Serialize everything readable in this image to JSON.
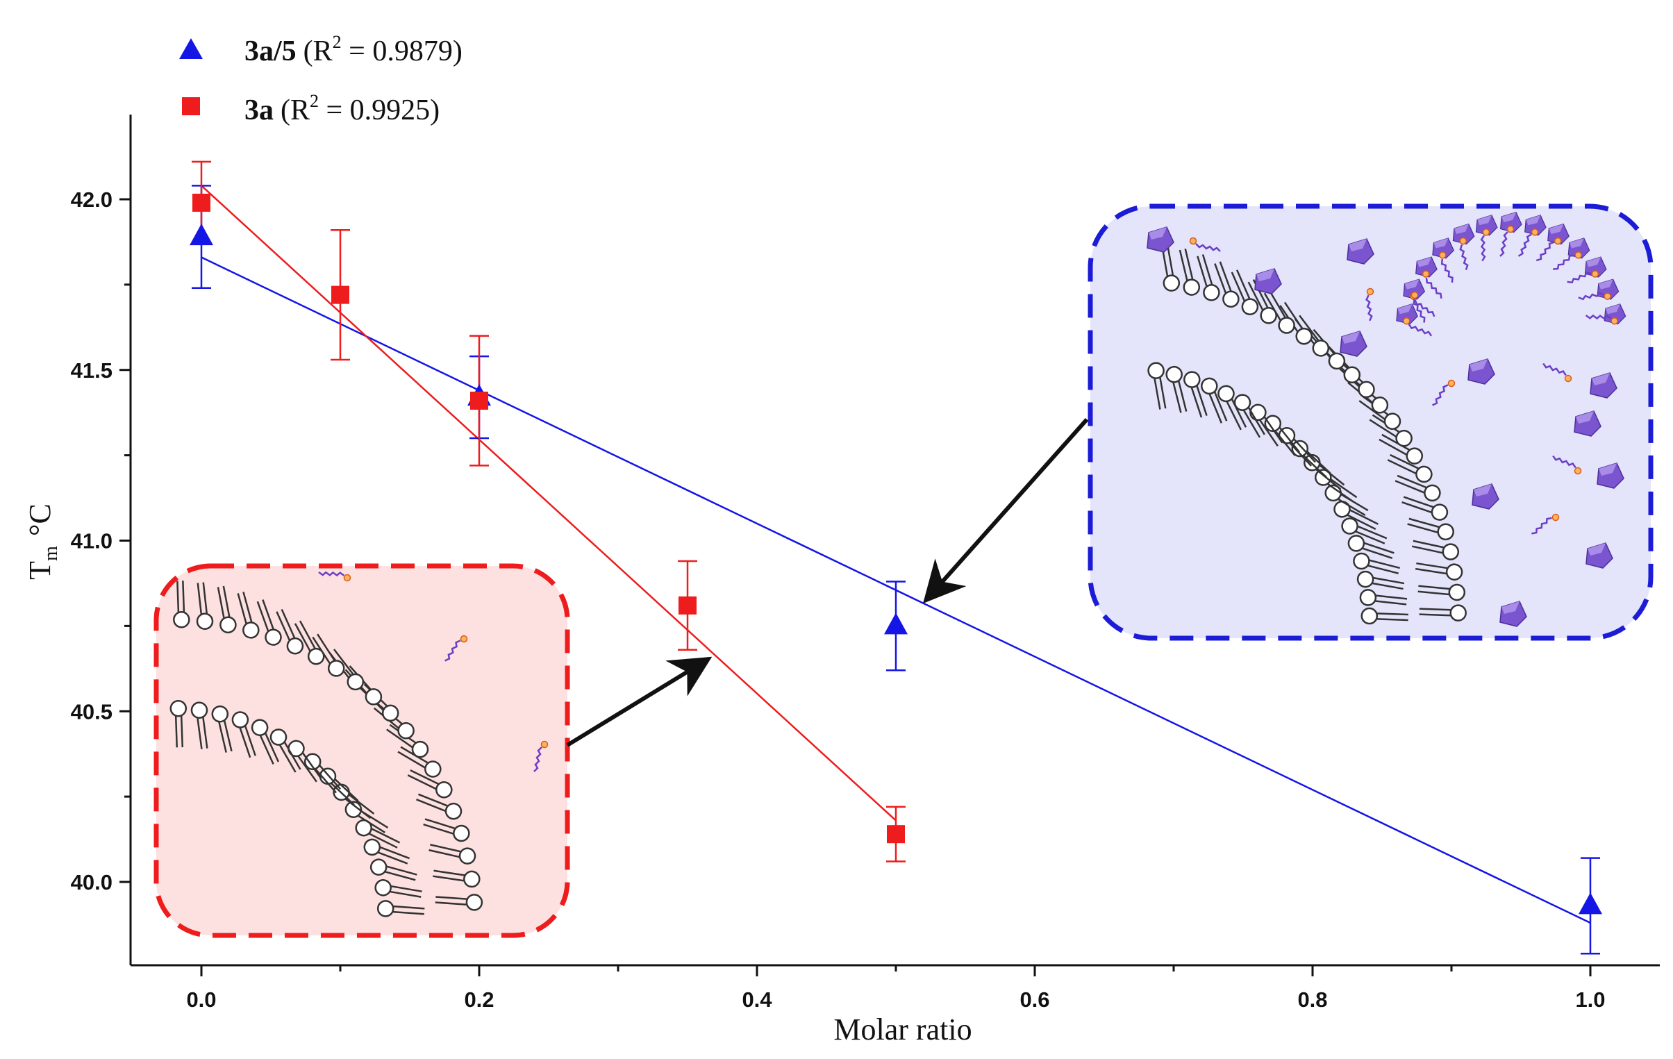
{
  "chart_data": {
    "type": "scatter",
    "title": "",
    "xlabel": "Molar ratio",
    "ylabel": "T",
    "ylabel_sub": "m",
    "ylabel_unit": "°C",
    "xlim": [
      -0.05,
      1.05
    ],
    "ylim": [
      39.75,
      42.25
    ],
    "x_ticks": [
      0.0,
      0.2,
      0.4,
      0.6,
      0.8,
      1.0
    ],
    "x_tick_labels": [
      "0.0",
      "0.2",
      "0.4",
      "0.6",
      "0.8",
      "1.0"
    ],
    "x_minor_ticks": [
      0.1,
      0.3,
      0.5,
      0.7,
      0.9
    ],
    "y_ticks": [
      40.0,
      40.5,
      41.0,
      41.5,
      42.0
    ],
    "y_tick_labels": [
      "40.0",
      "40.5",
      "41.0",
      "41.5",
      "42.0"
    ],
    "y_minor_ticks": [
      40.25,
      40.75,
      41.25,
      41.75
    ],
    "legend": [
      {
        "name": "3a/5",
        "r2_text": "(R",
        "r2_sup": "2",
        "r2_value": " = 0.9879)",
        "color": "#1515e6",
        "marker": "triangle"
      },
      {
        "name": "3a",
        "r2_text": "(R",
        "r2_sup": "2",
        "r2_value": " = 0.9925)",
        "color": "#ee1c1c",
        "marker": "square"
      }
    ],
    "series": [
      {
        "name": "3a/5",
        "color": "#1515e6",
        "marker": "triangle",
        "x": [
          0.0,
          0.2,
          0.5,
          1.0
        ],
        "y": [
          41.89,
          41.42,
          40.75,
          39.93
        ],
        "err": [
          0.15,
          0.12,
          0.13,
          0.14
        ],
        "fit": {
          "x": [
            0.0,
            1.0
          ],
          "y": [
            41.83,
            39.88
          ]
        }
      },
      {
        "name": "3a",
        "color": "#ee1c1c",
        "marker": "square",
        "x": [
          0.0,
          0.1,
          0.2,
          0.35,
          0.5
        ],
        "y": [
          41.99,
          41.72,
          41.41,
          40.81,
          40.14
        ],
        "err": [
          0.12,
          0.19,
          0.19,
          0.13,
          0.08
        ],
        "fit": {
          "x": [
            0.0,
            0.5
          ],
          "y": [
            42.04,
            40.18
          ]
        }
      }
    ],
    "insets": [
      {
        "name": "red-membrane-inset",
        "fill": "#fde0e0",
        "border": "#ee1c1c",
        "arrow_target": {
          "x": 0.37,
          "y": 40.67
        }
      },
      {
        "name": "blue-membrane-inset",
        "fill": "#e4e4fa",
        "border": "#1c1cd6",
        "arrow_target": {
          "x": 0.515,
          "y": 40.82
        }
      }
    ]
  }
}
